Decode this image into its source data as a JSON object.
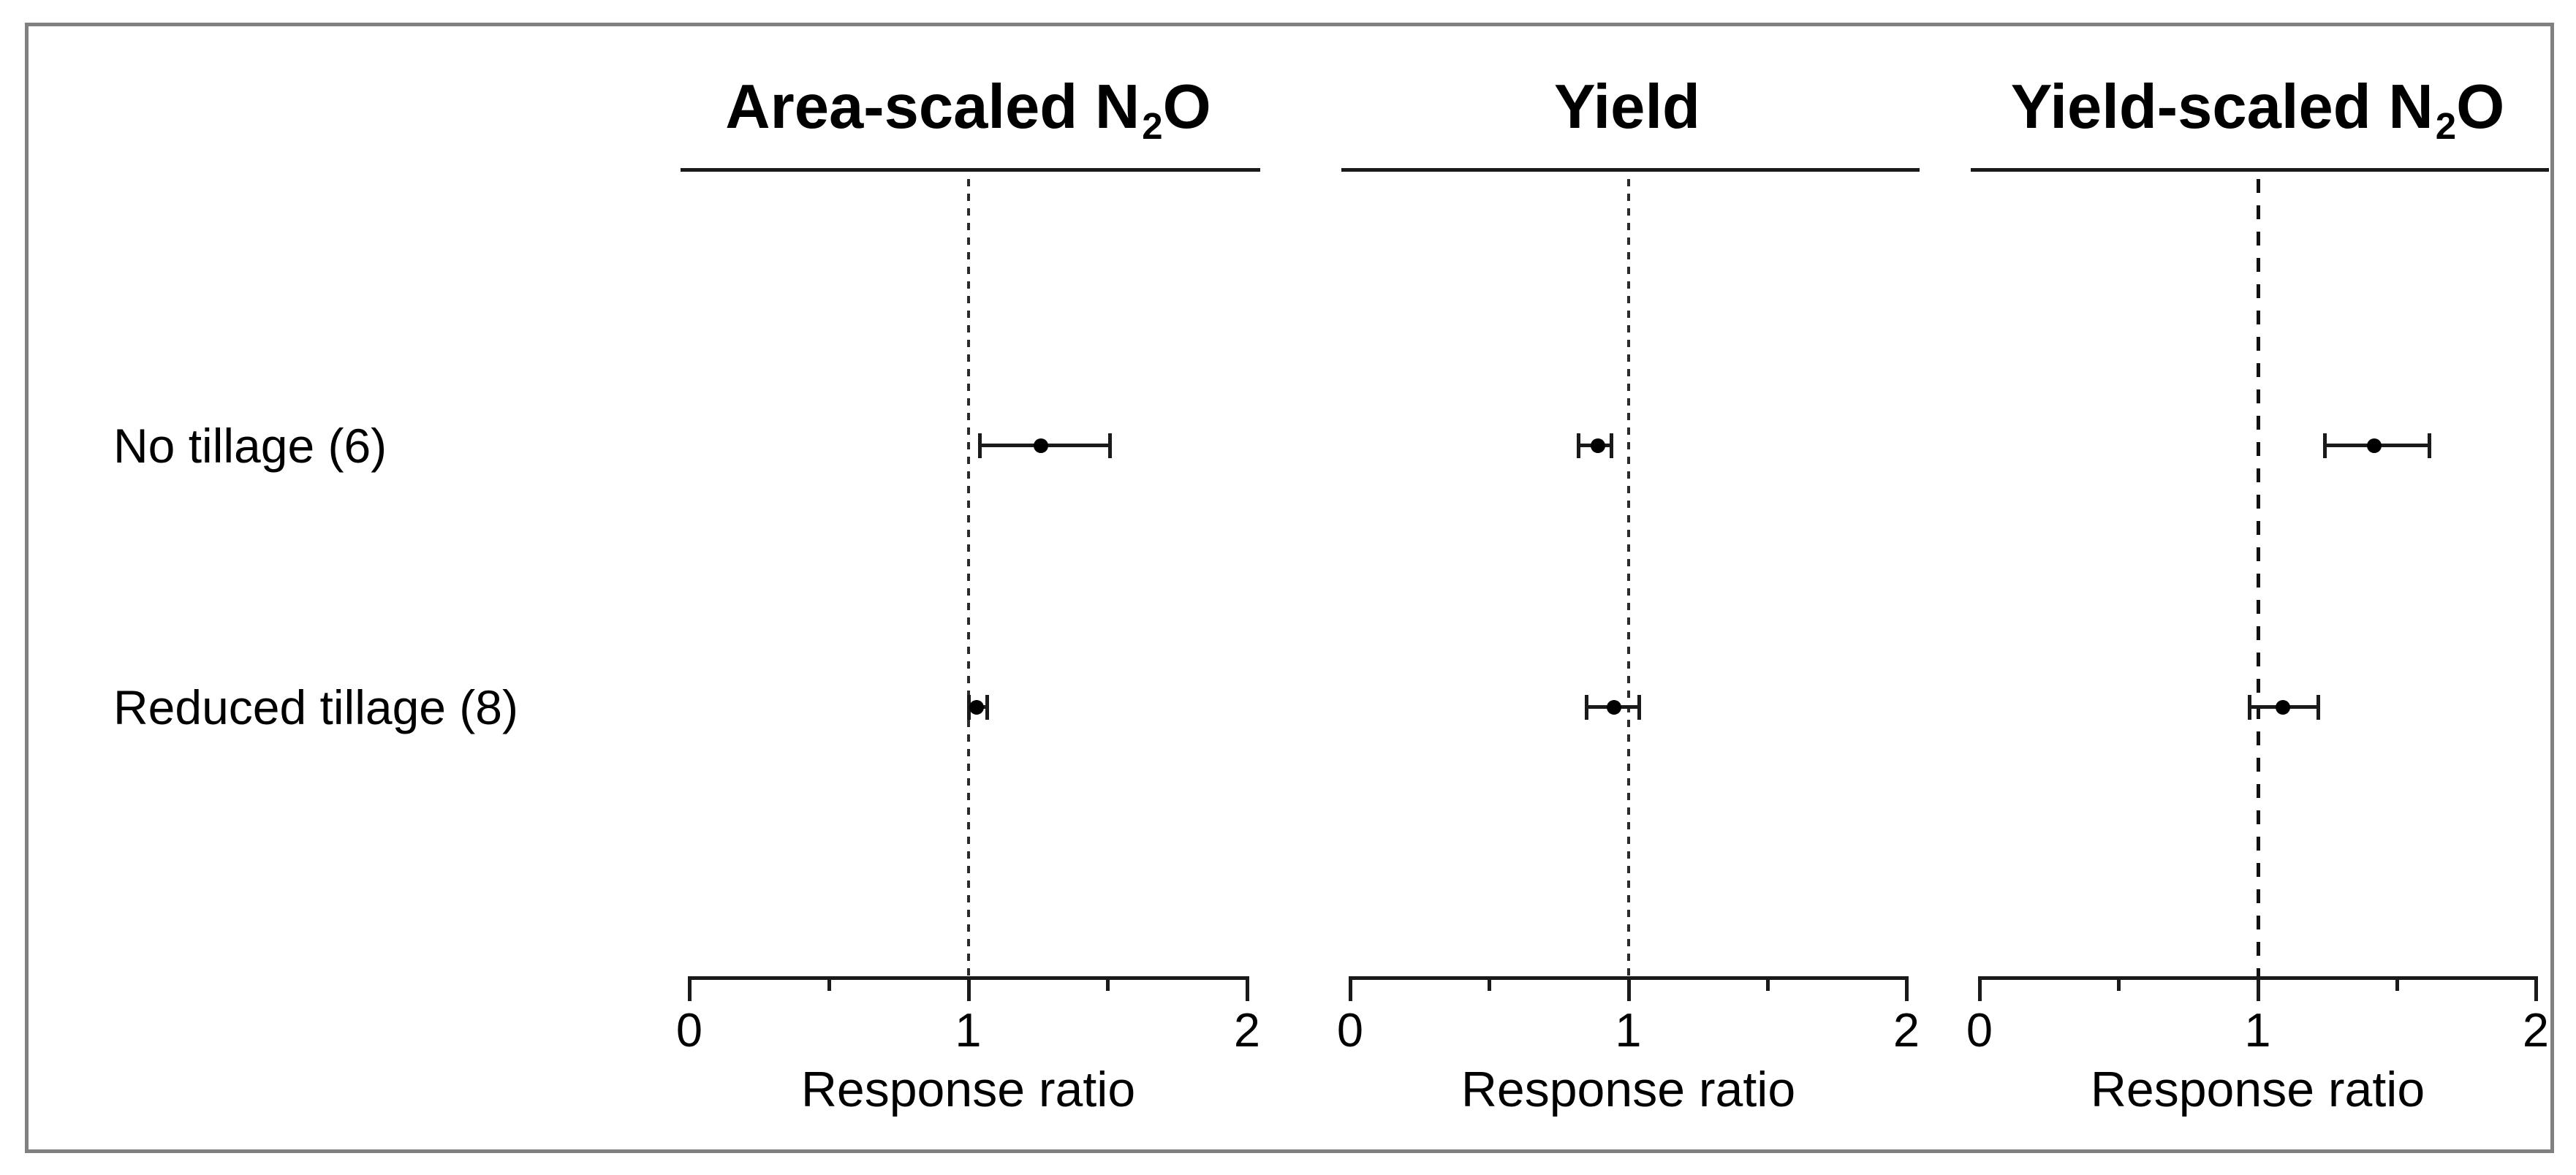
{
  "figure": {
    "border_color": "#808080",
    "background_color": "#ffffff",
    "text_color": "#000000",
    "marker_color": "#000000"
  },
  "chart_data": {
    "type": "scatter",
    "variant": "forest plot (mean point with 95% CI error bars, one panel per outcome)",
    "categories": [
      "No tillage (6)",
      "Reduced tillage (8)"
    ],
    "xlabel": "Response ratio",
    "xlim": [
      0,
      2
    ],
    "legend": "none",
    "grid": "off",
    "reference_line_x": 1,
    "panels": [
      {
        "title": {
          "pre": "Area-scaled N",
          "sub": "2",
          "post": "O"
        },
        "xlabel": "Response ratio",
        "xlim": [
          0,
          2
        ],
        "ticks": [
          0,
          1,
          2
        ],
        "minor_ticks": [
          0.5,
          1.5
        ],
        "ref_line": {
          "x": 1,
          "dash": "short"
        },
        "series": [
          {
            "category": "No tillage (6)",
            "mean": 1.26,
            "ci_low": 1.04,
            "ci_high": 1.51
          },
          {
            "category": "Reduced tillage (8)",
            "mean": 1.03,
            "ci_low": 1.0,
            "ci_high": 1.07
          }
        ]
      },
      {
        "title": {
          "pre": "Yield",
          "sub": "",
          "post": ""
        },
        "xlabel": "Response ratio",
        "xlim": [
          0,
          2
        ],
        "ticks": [
          0,
          1,
          2
        ],
        "minor_ticks": [
          0.5,
          1.5
        ],
        "ref_line": {
          "x": 1,
          "dash": "short"
        },
        "series": [
          {
            "category": "No tillage (6)",
            "mean": 0.89,
            "ci_low": 0.82,
            "ci_high": 0.94
          },
          {
            "category": "Reduced tillage (8)",
            "mean": 0.95,
            "ci_low": 0.85,
            "ci_high": 1.04
          }
        ]
      },
      {
        "title": {
          "pre": "Yield-scaled N",
          "sub": "2",
          "post": "O"
        },
        "xlabel": "Response ratio",
        "xlim": [
          0,
          2
        ],
        "ticks": [
          0,
          1,
          2
        ],
        "minor_ticks": [
          0.5,
          1.5
        ],
        "ref_line": {
          "x": 1,
          "dash": "long"
        },
        "series": [
          {
            "category": "No tillage (6)",
            "mean": 1.42,
            "ci_low": 1.24,
            "ci_high": 1.62
          },
          {
            "category": "Reduced tillage (8)",
            "mean": 1.09,
            "ci_low": 0.97,
            "ci_high": 1.22
          }
        ]
      }
    ]
  }
}
